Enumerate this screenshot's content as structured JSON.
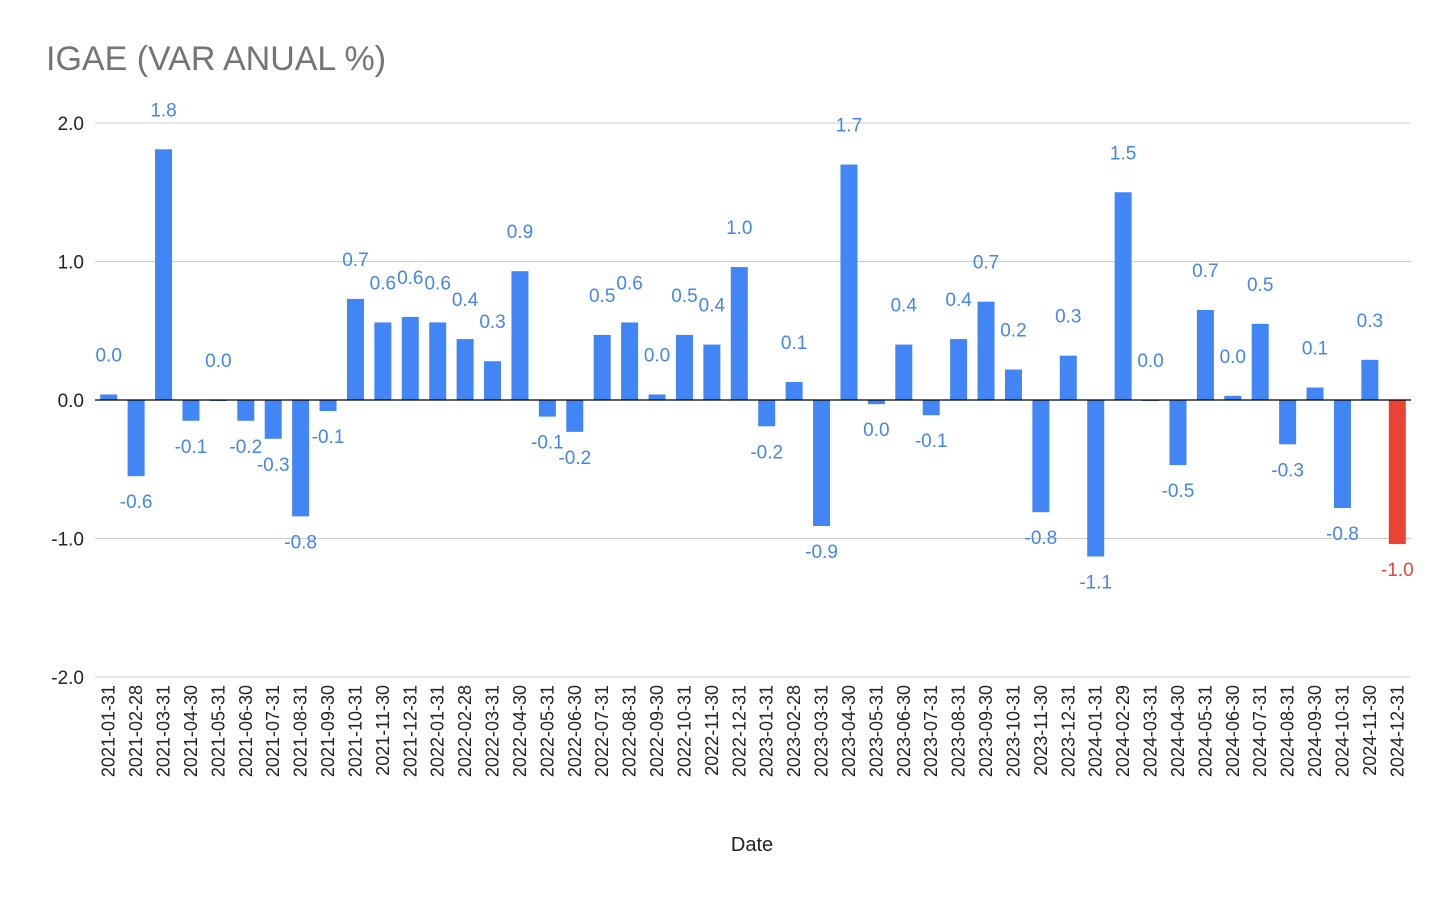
{
  "chart_data": {
    "type": "bar",
    "title": "IGAE (VAR ANUAL %)",
    "xlabel": "Date",
    "ylabel": "",
    "ylim": [
      -2.0,
      2.0
    ],
    "yticks": [
      "2.0",
      "1.0",
      "0.0",
      "-1.0",
      "-2.0"
    ],
    "grid": true,
    "legend": "none",
    "colors": {
      "positive_default": "#4285F4",
      "highlight": "#EA4335",
      "label_default": "#4285F4",
      "label_highlight": "#EA4335",
      "gridline": "#cccccc",
      "zero_line": "#000000"
    },
    "categories": [
      "2021-01-31",
      "2021-02-28",
      "2021-03-31",
      "2021-04-30",
      "2021-05-31",
      "2021-06-30",
      "2021-07-31",
      "2021-08-31",
      "2021-09-30",
      "2021-10-31",
      "2021-11-30",
      "2021-12-31",
      "2022-01-31",
      "2022-02-28",
      "2022-03-31",
      "2022-04-30",
      "2022-05-31",
      "2022-06-30",
      "2022-07-31",
      "2022-08-31",
      "2022-09-30",
      "2022-10-31",
      "2022-11-30",
      "2022-12-31",
      "2023-01-31",
      "2023-02-28",
      "2023-03-31",
      "2023-04-30",
      "2023-05-31",
      "2023-06-30",
      "2023-07-31",
      "2023-08-31",
      "2023-09-30",
      "2023-10-31",
      "2023-11-30",
      "2023-12-31",
      "2024-01-31",
      "2024-02-29",
      "2024-03-31",
      "2024-04-30",
      "2024-05-31",
      "2024-06-30",
      "2024-07-31",
      "2024-08-31",
      "2024-09-30",
      "2024-10-31",
      "2024-11-30",
      "2024-12-31"
    ],
    "values": [
      0.04,
      -0.55,
      1.81,
      -0.15,
      0.0,
      -0.15,
      -0.28,
      -0.84,
      -0.08,
      0.73,
      0.56,
      0.6,
      0.56,
      0.44,
      0.28,
      0.93,
      -0.12,
      -0.23,
      0.47,
      0.56,
      0.04,
      0.47,
      0.4,
      0.96,
      -0.19,
      0.13,
      -0.91,
      1.7,
      -0.03,
      0.4,
      -0.11,
      0.44,
      0.71,
      0.22,
      -0.81,
      0.32,
      -1.13,
      1.5,
      0.0,
      -0.47,
      0.65,
      0.03,
      0.55,
      -0.32,
      0.09,
      -0.78,
      0.29,
      -1.04
    ],
    "data_labels": [
      "0.0",
      "-0.6",
      "1.8",
      "-0.1",
      "0.0",
      "-0.2",
      "-0.3",
      "-0.8",
      "-0.1",
      "0.7",
      "0.6",
      "0.6",
      "0.6",
      "0.4",
      "0.3",
      "0.9",
      "-0.1",
      "-0.2",
      "0.5",
      "0.6",
      "0.0",
      "0.5",
      "0.4",
      "1.0",
      "-0.2",
      "0.1",
      "-0.9",
      "1.7",
      "0.0",
      "0.4",
      "-0.1",
      "0.4",
      "0.7",
      "0.2",
      "-0.8",
      "0.3",
      "-1.1",
      "1.5",
      "0.0",
      "-0.5",
      "0.7",
      "0.0",
      "0.5",
      "-0.3",
      "0.1",
      "-0.8",
      "0.3",
      "-1.0"
    ],
    "highlight_index": 47
  }
}
